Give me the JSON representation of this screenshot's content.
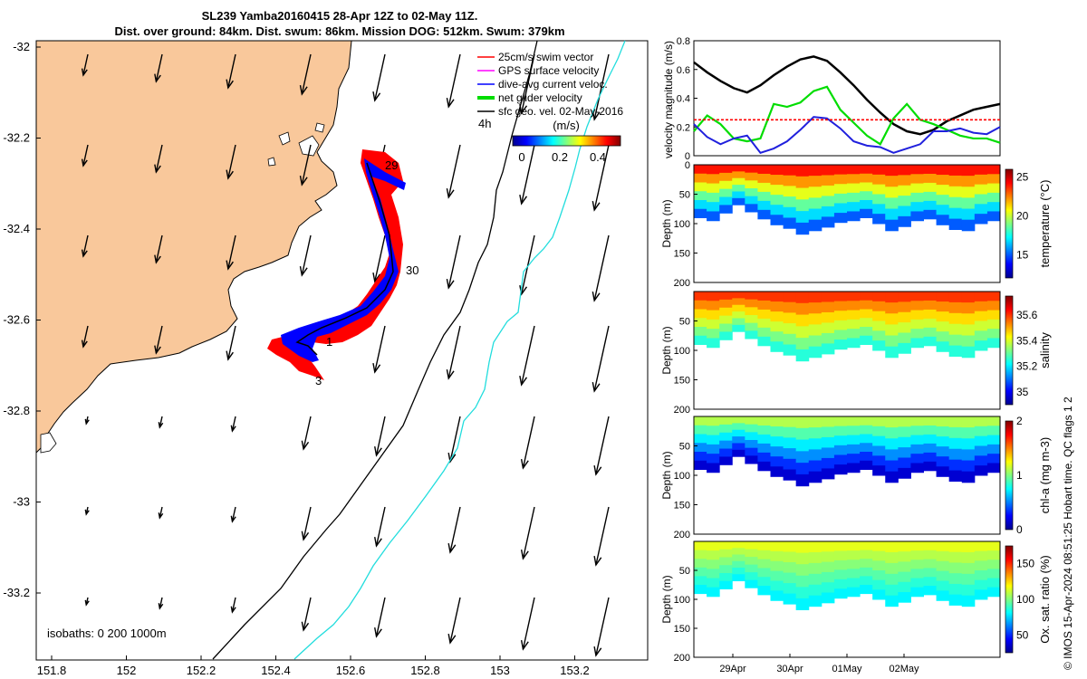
{
  "title_line1": "SL239 Yamba20160415 28-Apr 12Z to 02-May 11Z.",
  "title_line2": "Dist. over ground: 84km. Dist. swum: 86km. Mission DOG: 512km. Swum: 379km",
  "side_label": "© IMOS 15-Apr-2024 08:51:25 Hobart time. QC flags 1  2",
  "map": {
    "lat_ticks": [
      "-32",
      "-32.2",
      "-32.4",
      "-32.6",
      "-32.8",
      "-33",
      "-33.2"
    ],
    "lon_ticks": [
      "151.8",
      "152",
      "152.2",
      "152.4",
      "152.6",
      "152.8",
      "153",
      "153.2"
    ],
    "legend": {
      "items": [
        {
          "label": "25cm/s swim vector",
          "color": "#ff0000"
        },
        {
          "label": "GPS surface velocity",
          "color": "#ff00ff"
        },
        {
          "label": "dive-avg current veloc.",
          "color": "#0000ff"
        },
        {
          "label": "net glider velocity",
          "color": "#00dd00"
        },
        {
          "label": "sfc geo. vel. 02-May-2016",
          "color": "#000000"
        }
      ]
    },
    "colorbar": {
      "label": "(m/s)",
      "ticks": [
        "0",
        "0.2",
        "0.4"
      ],
      "prefix": "4h"
    },
    "day_labels": [
      "29",
      "30",
      "1",
      "3"
    ],
    "isobaths": "isobaths: 0   200  1000m",
    "colors": {
      "land": "#f9c89b",
      "coast": "#000000",
      "track_red": "#ff0000",
      "track_blue": "#0000ff",
      "isobath_cyan": "#22dddd"
    }
  },
  "chart_data": [
    {
      "type": "line",
      "ylabel": "velocity magnitude (m/s)",
      "ylim": [
        0,
        0.8
      ],
      "yticks": [
        "0",
        "0.2",
        "0.4",
        "0.6",
        "0.8"
      ],
      "x_range_days": [
        "28-Apr 12Z",
        "02-May 11Z"
      ],
      "series": [
        {
          "color": "#000000",
          "values": [
            0.65,
            0.58,
            0.52,
            0.47,
            0.44,
            0.49,
            0.56,
            0.62,
            0.67,
            0.69,
            0.66,
            0.58,
            0.49,
            0.39,
            0.3,
            0.22,
            0.17,
            0.15,
            0.18,
            0.24,
            0.28,
            0.32,
            0.34,
            0.36
          ]
        },
        {
          "color": "#00dd00",
          "values": [
            0.17,
            0.28,
            0.22,
            0.12,
            0.1,
            0.12,
            0.36,
            0.34,
            0.37,
            0.45,
            0.48,
            0.32,
            0.23,
            0.14,
            0.08,
            0.26,
            0.36,
            0.25,
            0.22,
            0.18,
            0.14,
            0.12,
            0.12,
            0.09
          ]
        },
        {
          "color": "#2020dd",
          "values": [
            0.22,
            0.13,
            0.08,
            0.12,
            0.14,
            0.02,
            0.05,
            0.1,
            0.18,
            0.27,
            0.26,
            0.19,
            0.1,
            0.07,
            0.06,
            0.02,
            0.05,
            0.08,
            0.17,
            0.17,
            0.19,
            0.16,
            0.15,
            0.2
          ]
        },
        {
          "color": "#ff0000",
          "values": [
            0.25,
            0.25,
            0.25,
            0.25,
            0.25,
            0.25,
            0.25,
            0.25,
            0.25,
            0.25,
            0.25,
            0.25,
            0.25,
            0.25,
            0.25,
            0.25,
            0.25,
            0.25,
            0.25,
            0.25,
            0.25,
            0.25,
            0.25,
            0.25
          ]
        }
      ]
    },
    {
      "type": "heatmap",
      "ylabel": "Depth (m)",
      "ylim": [
        200,
        0
      ],
      "yticks": [
        "0",
        "50",
        "100",
        "150",
        "200"
      ],
      "colorbar_label": "temperature (°C)",
      "colorbar_ticks": [
        "25",
        "20",
        "15"
      ],
      "colorbar_range": [
        12,
        26
      ],
      "bottom_depth_m": [
        90,
        95,
        82,
        68,
        80,
        92,
        102,
        108,
        118,
        112,
        106,
        98,
        95,
        90,
        100,
        112,
        105,
        95,
        92,
        102,
        110,
        112,
        100,
        95
      ],
      "surface_value": 24,
      "deep_value": 15
    },
    {
      "type": "heatmap",
      "ylabel": "Depth (m)",
      "ylim": [
        200,
        0
      ],
      "yticks": [
        "50",
        "100",
        "150",
        "200"
      ],
      "colorbar_label": "salinity",
      "colorbar_ticks": [
        "35.6",
        "35.4",
        "35.2",
        "35"
      ],
      "colorbar_range": [
        34.9,
        35.75
      ],
      "bottom_depth_m": [
        90,
        95,
        82,
        68,
        80,
        92,
        102,
        108,
        118,
        112,
        106,
        98,
        95,
        90,
        100,
        112,
        105,
        95,
        92,
        102,
        110,
        112,
        100,
        95
      ],
      "surface_value": 35.6,
      "deep_value": 35.25
    },
    {
      "type": "heatmap",
      "ylabel": "Depth (m)",
      "ylim": [
        200,
        0
      ],
      "yticks": [
        "50",
        "100",
        "150",
        "200"
      ],
      "colorbar_label": "chl-a (mg m-3)",
      "colorbar_ticks": [
        "2",
        "1",
        "0"
      ],
      "colorbar_range": [
        0,
        2
      ],
      "bottom_depth_m": [
        90,
        95,
        82,
        68,
        80,
        92,
        102,
        108,
        118,
        112,
        106,
        98,
        95,
        90,
        100,
        112,
        105,
        95,
        92,
        102,
        110,
        112,
        100,
        95
      ],
      "surface_value": 1.1,
      "deep_value": 0.15
    },
    {
      "type": "heatmap",
      "ylabel": "Depth (m)",
      "ylim": [
        200,
        0
      ],
      "yticks": [
        "50",
        "100",
        "150",
        "200"
      ],
      "colorbar_label": "Ox. sat. ratio (%)",
      "colorbar_ticks": [
        "150",
        "100",
        "50"
      ],
      "colorbar_range": [
        25,
        175
      ],
      "bottom_depth_m": [
        90,
        95,
        82,
        68,
        80,
        92,
        102,
        108,
        118,
        112,
        106,
        98,
        95,
        90,
        100,
        112,
        105,
        95,
        92,
        102,
        110,
        112,
        100,
        95
      ],
      "surface_value": 115,
      "deep_value": 80,
      "xticks": [
        "29Apr",
        "30Apr",
        "01May",
        "02May"
      ]
    }
  ]
}
